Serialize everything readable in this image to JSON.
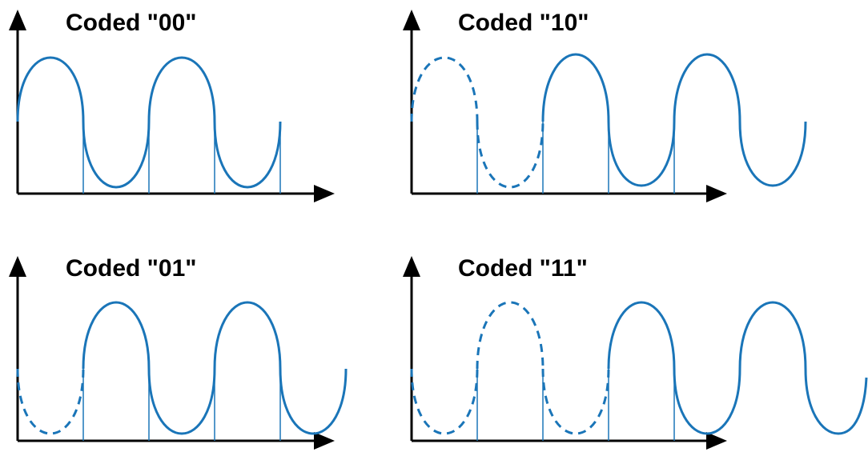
{
  "colors": {
    "wave": "#1a75b8",
    "axis": "#000000",
    "background": "#ffffff"
  },
  "panels": [
    {
      "id": "00",
      "title": "Coded \"00\"",
      "phase_shift_deg": 0,
      "segments": [
        "solid",
        "solid",
        "solid",
        "solid"
      ]
    },
    {
      "id": "10",
      "title": "Coded \"10\"",
      "phase_shift_deg": 90,
      "segments": [
        "dashed",
        "dashed",
        "solid",
        "solid",
        "solid",
        "solid",
        "solid"
      ]
    },
    {
      "id": "01",
      "title": "Coded \"01\"",
      "phase_shift_deg": 180,
      "segments": [
        "dashed",
        "solid",
        "solid",
        "solid",
        "solid",
        "solid"
      ]
    },
    {
      "id": "11",
      "title": "Coded \"11\"",
      "phase_shift_deg": 270,
      "segments": [
        "dashed",
        "dashed",
        "solid",
        "solid",
        "solid",
        "solid",
        "solid"
      ]
    }
  ]
}
